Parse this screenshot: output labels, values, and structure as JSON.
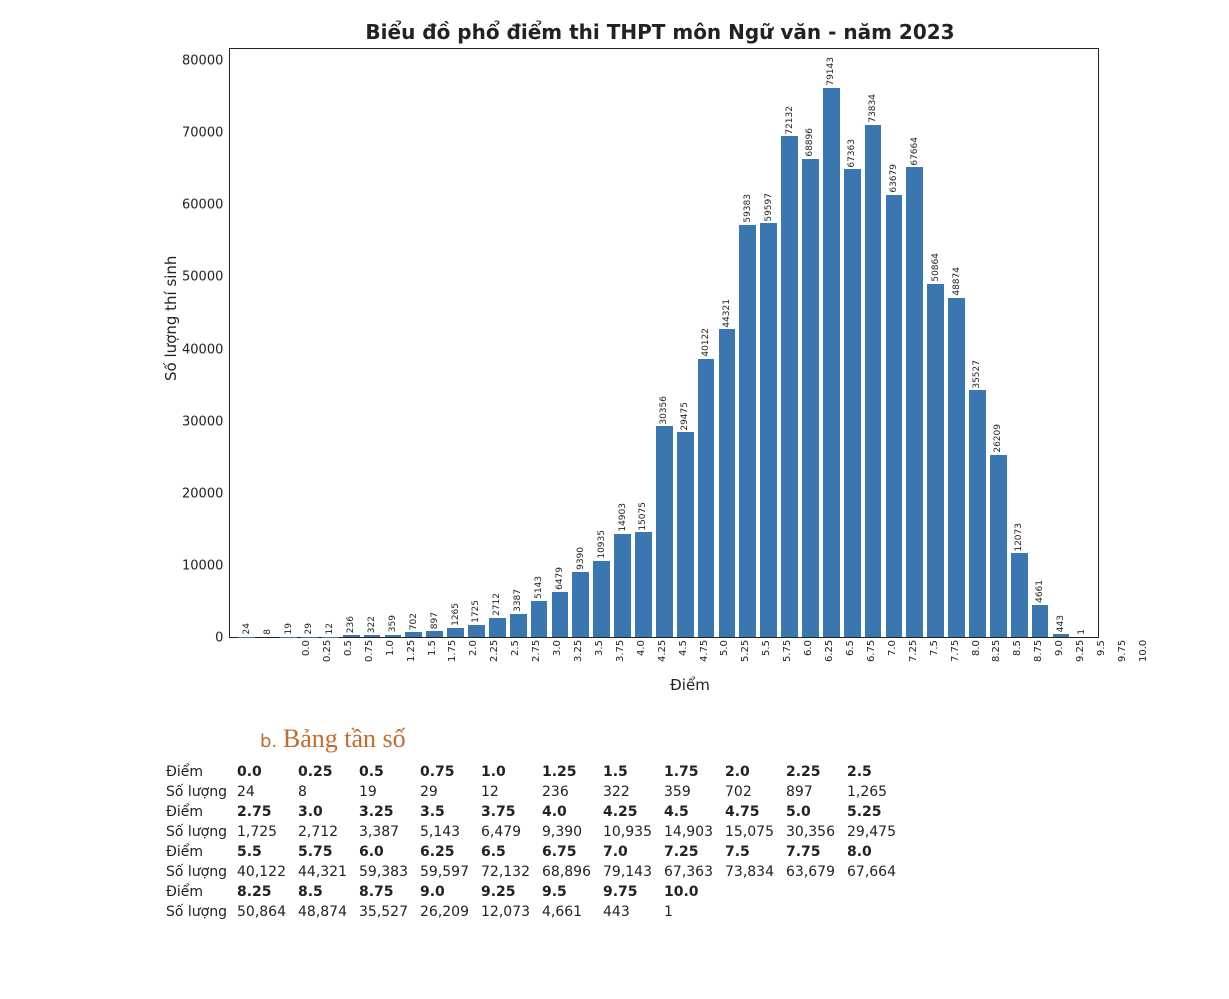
{
  "chart": {
    "title": "Biểu đồ phổ điểm thi THPT môn Ngữ văn - năm 2023",
    "xlabel": "Điểm",
    "ylabel": "Số lượng thí sinh",
    "type": "bar",
    "bar_color": "#3a76af",
    "background_color": "#ffffff",
    "border_color": "#222222",
    "title_fontsize": 20,
    "label_fontsize": 15,
    "tick_fontsize": 10,
    "bar_label_fontsize": 9,
    "bar_width": 0.8,
    "ylim": [
      0,
      85000
    ],
    "yticks": [
      80000,
      70000,
      60000,
      50000,
      40000,
      30000,
      20000,
      10000,
      0
    ],
    "categories": [
      "0.0",
      "0.25",
      "0.5",
      "0.75",
      "1.0",
      "1.25",
      "1.5",
      "1.75",
      "2.0",
      "2.25",
      "2.5",
      "2.75",
      "3.0",
      "3.25",
      "3.5",
      "3.75",
      "4.0",
      "4.25",
      "4.5",
      "4.75",
      "5.0",
      "5.25",
      "5.5",
      "5.75",
      "6.0",
      "6.25",
      "6.5",
      "6.75",
      "7.0",
      "7.25",
      "7.5",
      "7.75",
      "8.0",
      "8.25",
      "8.5",
      "8.75",
      "9.0",
      "9.25",
      "9.5",
      "9.75",
      "10.0"
    ],
    "values": [
      24,
      8,
      19,
      29,
      12,
      236,
      322,
      359,
      702,
      897,
      1265,
      1725,
      2712,
      3387,
      5143,
      6479,
      9390,
      10935,
      14903,
      15075,
      30356,
      29475,
      40122,
      44321,
      59383,
      59597,
      72132,
      68896,
      79143,
      67363,
      73834,
      63679,
      67664,
      50864,
      48874,
      35527,
      26209,
      12073,
      4661,
      443,
      1
    ]
  },
  "freq_section": {
    "prefix": "b.",
    "heading": "Bảng tần số",
    "score_label": "Điểm",
    "count_label": "Số lượng",
    "row_len": 11,
    "scores": [
      "0.0",
      "0.25",
      "0.5",
      "0.75",
      "1.0",
      "1.25",
      "1.5",
      "1.75",
      "2.0",
      "2.25",
      "2.5",
      "2.75",
      "3.0",
      "3.25",
      "3.5",
      "3.75",
      "4.0",
      "4.25",
      "4.5",
      "4.75",
      "5.0",
      "5.25",
      "5.5",
      "5.75",
      "6.0",
      "6.25",
      "6.5",
      "6.75",
      "7.0",
      "7.25",
      "7.5",
      "7.75",
      "8.0",
      "8.25",
      "8.5",
      "8.75",
      "9.0",
      "9.25",
      "9.5",
      "9.75",
      "10.0"
    ],
    "counts": [
      "24",
      "8",
      "19",
      "29",
      "12",
      "236",
      "322",
      "359",
      "702",
      "897",
      "1,265",
      "1,725",
      "2,712",
      "3,387",
      "5,143",
      "6,479",
      "9,390",
      "10,935",
      "14,903",
      "15,075",
      "30,356",
      "29,475",
      "40,122",
      "44,321",
      "59,383",
      "59,597",
      "72,132",
      "68,896",
      "79,143",
      "67,363",
      "73,834",
      "63,679",
      "67,664",
      "50,864",
      "48,874",
      "35,527",
      "26,209",
      "12,073",
      "4,661",
      "443",
      "1"
    ]
  }
}
